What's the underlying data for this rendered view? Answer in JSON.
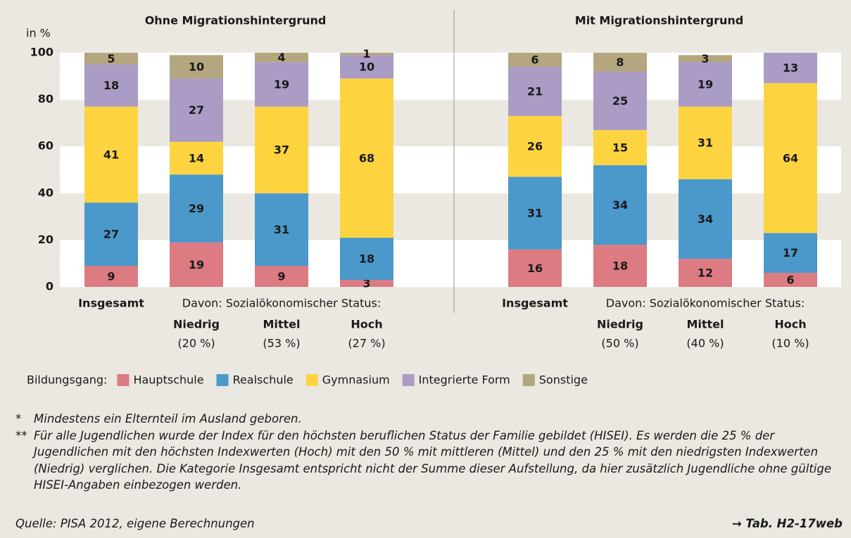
{
  "chart_data": {
    "type": "stacked_bar",
    "y_label": "in %",
    "ylim": [
      0,
      100
    ],
    "yticks": [
      0,
      20,
      40,
      60,
      80,
      100
    ],
    "grid": "bands",
    "panels": [
      {
        "title": "Ohne Migrationshintergrund",
        "group_label": "Davon: Sozialökonomischer Status:"
      },
      {
        "title": "Mit Migrationshintergrund",
        "group_label": "Davon: Sozialökonomischer Status:"
      }
    ],
    "categories": [
      "Insgesamt",
      "Niedrig",
      "Mittel",
      "Hoch",
      "Insgesamt",
      "Niedrig",
      "Mittel",
      "Hoch"
    ],
    "category_notes": [
      null,
      "(20 %)",
      "(53 %)",
      "(27 %)",
      null,
      "(50 %)",
      "(40 %)",
      "(10 %)"
    ],
    "legend_title": "Bildungsgang:",
    "series": [
      {
        "name": "Hauptschule",
        "color": "#dd7b82",
        "values": [
          9,
          19,
          9,
          3,
          16,
          18,
          12,
          6
        ]
      },
      {
        "name": "Realschule",
        "color": "#4b98ca",
        "values": [
          27,
          29,
          31,
          18,
          31,
          34,
          34,
          17
        ]
      },
      {
        "name": "Gymnasium",
        "color": "#fdd440",
        "values": [
          41,
          14,
          37,
          68,
          26,
          15,
          31,
          64
        ]
      },
      {
        "name": "Integrierte Form",
        "color": "#aa9cc5",
        "values": [
          18,
          27,
          19,
          10,
          21,
          25,
          19,
          13
        ]
      },
      {
        "name": "Sonstige",
        "color": "#b4a67e",
        "values": [
          5,
          10,
          4,
          1,
          6,
          8,
          3,
          null
        ]
      }
    ]
  },
  "notes": [
    {
      "marker": "*",
      "text": "Mindestens ein Elternteil im Ausland geboren."
    },
    {
      "marker": "**",
      "text": "Für alle Jugendlichen wurde der Index für den höchsten beruflichen Status der Familie gebildet (HISEI). Es werden die 25 % der Jugendlichen mit den höchsten Indexwerten (Hoch) mit den 50 % mit mittleren (Mittel) und den 25 % mit den niedrigsten Indexwerten (Niedrig) verglichen. Die Kategorie Insgesamt entspricht nicht der Summe dieser Aufstellung, da hier zusätzlich Jugendliche ohne gültige HISEI-Angaben einbezogen werden."
    }
  ],
  "source": "Quelle: PISA 2012, eigene Berechnungen",
  "reference": "→ Tab. H2-17web"
}
